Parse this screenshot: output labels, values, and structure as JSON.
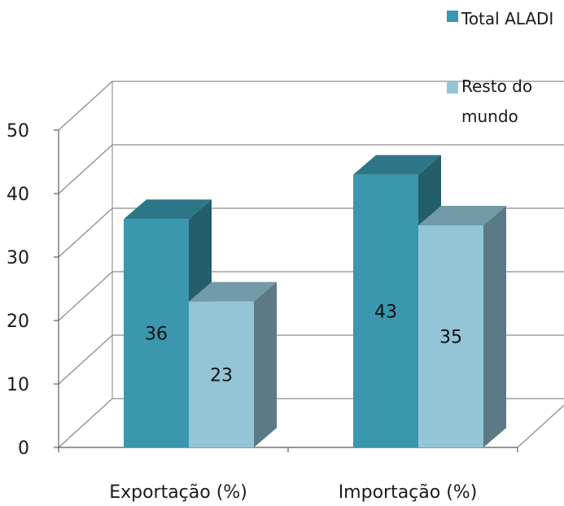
{
  "chart_data": {
    "type": "bar",
    "categories": [
      "Exportação (%)",
      "Importação (%)"
    ],
    "series": [
      {
        "name": "Total ALADI",
        "values": [
          36,
          43
        ],
        "color": "#3a97ad"
      },
      {
        "name": "Resto do mundo",
        "values": [
          23,
          35
        ],
        "color": "#94c5d7"
      }
    ],
    "ylim": [
      0,
      50
    ],
    "yticks": [
      0,
      10,
      20,
      30,
      40,
      50
    ],
    "legend": {
      "placement": "top-right",
      "labels": [
        "Total ALADI",
        "Resto do\nmundo"
      ]
    },
    "grid": true,
    "style": "3d-column"
  }
}
